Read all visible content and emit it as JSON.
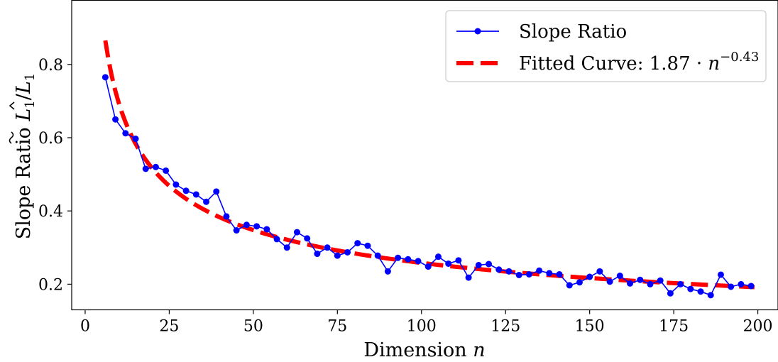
{
  "chart_data": {
    "type": "line",
    "xlabel": "Dimension n",
    "ylabel": "Slope Ratio L̃1/L̂1",
    "xlim": [
      -4,
      206
    ],
    "ylim": [
      0.13,
      0.975
    ],
    "x_ticks": [
      0,
      25,
      50,
      75,
      100,
      125,
      150,
      175,
      200
    ],
    "y_ticks": [
      0.2,
      0.4,
      0.6,
      0.8
    ],
    "x_tick_labels": [
      "0",
      "25",
      "50",
      "75",
      "100",
      "125",
      "150",
      "175",
      "200"
    ],
    "y_tick_labels": [
      "0.2",
      "0.4",
      "0.6",
      "0.8"
    ],
    "grid": false,
    "legend_position": "top-right",
    "series": [
      {
        "name": "Slope Ratio",
        "kind": "line-marker",
        "color": "#0000ff",
        "x": [
          6,
          9,
          12,
          15,
          18,
          21,
          24,
          27,
          30,
          33,
          36,
          39,
          42,
          45,
          48,
          51,
          54,
          57,
          60,
          63,
          66,
          69,
          72,
          75,
          78,
          81,
          84,
          87,
          90,
          93,
          96,
          99,
          102,
          105,
          108,
          111,
          114,
          117,
          120,
          123,
          126,
          129,
          132,
          135,
          138,
          141,
          144,
          147,
          150,
          153,
          156,
          159,
          162,
          165,
          168,
          171,
          174,
          177,
          180,
          183,
          186,
          189,
          192,
          195,
          198
        ],
        "y": [
          0.765,
          0.65,
          0.612,
          0.597,
          0.515,
          0.52,
          0.51,
          0.472,
          0.455,
          0.445,
          0.425,
          0.453,
          0.385,
          0.347,
          0.362,
          0.358,
          0.35,
          0.323,
          0.3,
          0.342,
          0.325,
          0.283,
          0.3,
          0.278,
          0.287,
          0.312,
          0.305,
          0.278,
          0.235,
          0.272,
          0.268,
          0.263,
          0.248,
          0.275,
          0.256,
          0.265,
          0.218,
          0.252,
          0.255,
          0.24,
          0.235,
          0.225,
          0.227,
          0.237,
          0.23,
          0.227,
          0.197,
          0.205,
          0.22,
          0.235,
          0.207,
          0.223,
          0.202,
          0.212,
          0.2,
          0.21,
          0.175,
          0.2,
          0.187,
          0.18,
          0.17,
          0.226,
          0.193,
          0.2,
          0.195
        ]
      },
      {
        "name": "Fitted Curve: 1.87 · n^−0.43",
        "kind": "fit",
        "color": "#ff0000",
        "coefficient": 1.87,
        "exponent": -0.43,
        "x_range": [
          6,
          199
        ]
      }
    ]
  },
  "legend": {
    "series1_label": "Slope Ratio",
    "series2_prefix": "Fitted Curve: 1.87 · ",
    "series2_var": "n",
    "series2_exp": "−0.43"
  },
  "axes": {
    "xlabel_prefix": "Dimension ",
    "xlabel_var": "n",
    "ylabel_prefix": "Slope Ratio ",
    "ylabel_L1": "L",
    "ylabel_sub1": "1",
    "ylabel_slash": "/",
    "ylabel_L2": "L",
    "ylabel_sub2": "1"
  }
}
